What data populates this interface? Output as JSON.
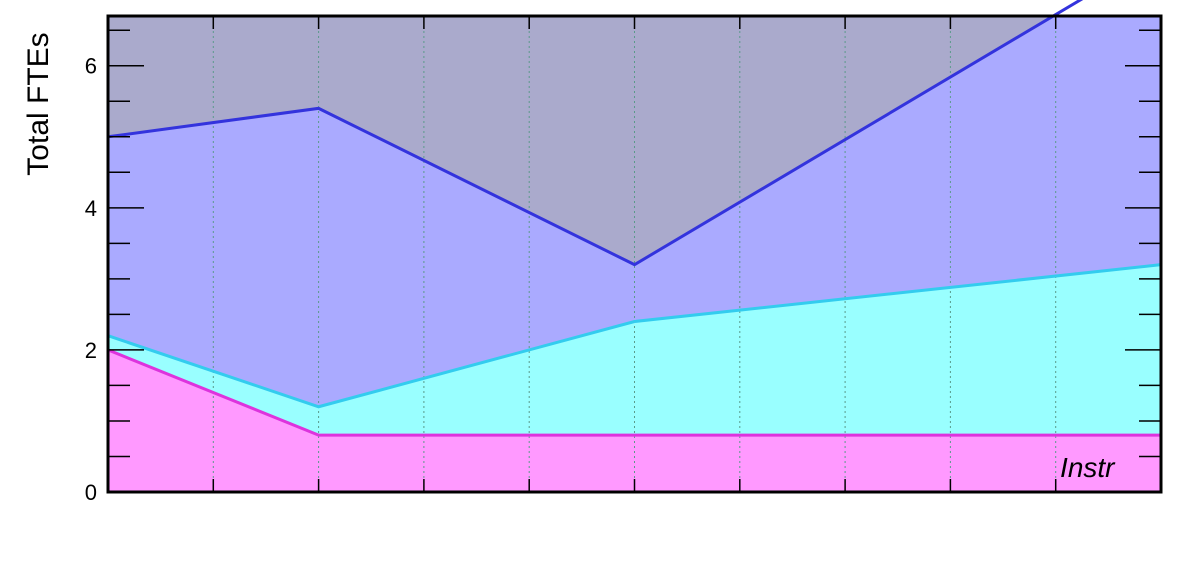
{
  "chart_data": {
    "type": "area",
    "stacked": true,
    "ylabel": "Total FTEs",
    "ylim": [
      0,
      6.7
    ],
    "xlim": [
      0,
      10
    ],
    "y_ticks": [
      0,
      2,
      4,
      6
    ],
    "y_tick_labels": [
      "0",
      "2",
      "4",
      "6"
    ],
    "y_minor_step": 0.5,
    "x_ticks": [
      1,
      2,
      3,
      4,
      5,
      6,
      7,
      8,
      9
    ],
    "x_tick_labels": [],
    "grid": "vertical dotted",
    "background_color": "#aaaacc",
    "series": [
      {
        "x": [
          0,
          2,
          5,
          10
        ],
        "values": [
          2.0,
          0.8,
          0.8,
          0.8
        ],
        "fill": "#ff99ff",
        "line": "#dd33dd"
      },
      {
        "x": [
          0,
          2,
          5,
          10
        ],
        "values": [
          2.2,
          1.2,
          2.4,
          3.2
        ],
        "fill": "#99ffff",
        "line": "#33ccee"
      },
      {
        "x": [
          0,
          2,
          5,
          10
        ],
        "values": [
          5.0,
          5.4,
          3.2,
          7.6
        ],
        "fill": "#aaaaff",
        "line": "#3333dd"
      }
    ],
    "annotations": [
      {
        "text": "Instr",
        "x": 9.3,
        "y": 0.35
      }
    ]
  }
}
